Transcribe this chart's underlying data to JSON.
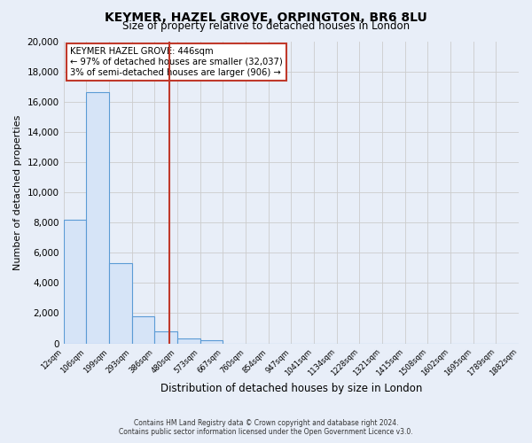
{
  "title": "KEYMER, HAZEL GROVE, ORPINGTON, BR6 8LU",
  "subtitle": "Size of property relative to detached houses in London",
  "xlabel": "Distribution of detached houses by size in London",
  "ylabel": "Number of detached properties",
  "bin_labels": [
    "12sqm",
    "106sqm",
    "199sqm",
    "293sqm",
    "386sqm",
    "480sqm",
    "573sqm",
    "667sqm",
    "760sqm",
    "854sqm",
    "947sqm",
    "1041sqm",
    "1134sqm",
    "1228sqm",
    "1321sqm",
    "1415sqm",
    "1508sqm",
    "1602sqm",
    "1695sqm",
    "1789sqm",
    "1882sqm"
  ],
  "bar_heights": [
    8200,
    16600,
    5300,
    1800,
    800,
    300,
    230,
    0,
    0,
    0,
    0,
    0,
    0,
    0,
    0,
    0,
    0,
    0,
    0,
    0
  ],
  "bar_color": "#d6e4f7",
  "bar_edge_color": "#5b9bd5",
  "ylim": [
    0,
    20000
  ],
  "yticks": [
    0,
    2000,
    4000,
    6000,
    8000,
    10000,
    12000,
    14000,
    16000,
    18000,
    20000
  ],
  "vline_color": "#c0392b",
  "annotation_title": "KEYMER HAZEL GROVE: 446sqm",
  "annotation_line1": "← 97% of detached houses are smaller (32,037)",
  "annotation_line2": "3% of semi-detached houses are larger (906) →",
  "annotation_box_color": "#ffffff",
  "annotation_box_edge": "#c0392b",
  "grid_color": "#cccccc",
  "background_color": "#e8eef8",
  "footer1": "Contains HM Land Registry data © Crown copyright and database right 2024.",
  "footer2": "Contains public sector information licensed under the Open Government Licence v3.0."
}
